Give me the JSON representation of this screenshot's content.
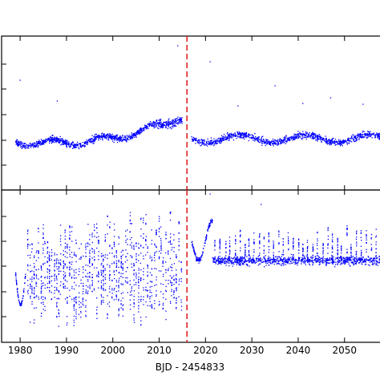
{
  "chart_data": [
    {
      "type": "scatter",
      "panel": "top",
      "xlim": [
        1976,
        2058
      ],
      "x_ticks": [
        1980,
        1990,
        2000,
        2010,
        2020,
        2030,
        2040,
        2050
      ],
      "y_ticks_shown": false,
      "series": [
        {
          "color": "#0000ff",
          "segments": [
            {
              "x_range": [
                1979,
                2015
              ],
              "trend": "flat then rising toward the divider",
              "scatter": "moderate"
            },
            {
              "x_range": [
                2017,
                2058
              ],
              "trend": "flat, gently undulating",
              "scatter": "moderate"
            }
          ],
          "outliers_x": [
            1980,
            1988,
            2014,
            2021,
            2035,
            2041,
            2047,
            2054
          ]
        }
      ],
      "vline": {
        "x": 2016,
        "color": "#dd2222",
        "style": "dashed"
      }
    },
    {
      "type": "scatter",
      "panel": "bottom",
      "xlim": [
        1976,
        2058
      ],
      "x_ticks": [
        1980,
        1990,
        2000,
        2010,
        2020,
        2030,
        2040,
        2050
      ],
      "xlabel": "BJD - 2454833",
      "y_ticks_shown": false,
      "series": [
        {
          "color": "#0000ff",
          "segments": [
            {
              "x_range": [
                1979,
                2015
              ],
              "trend": "widely scattered vertical streaks",
              "scatter": "large"
            },
            {
              "x_range": [
                2017,
                2058
              ],
              "trend": "initial dip then a band with spikes",
              "scatter": "medium"
            }
          ]
        }
      ],
      "vline": {
        "x": 2016,
        "color": "#dd2222",
        "style": "dashed"
      }
    }
  ]
}
